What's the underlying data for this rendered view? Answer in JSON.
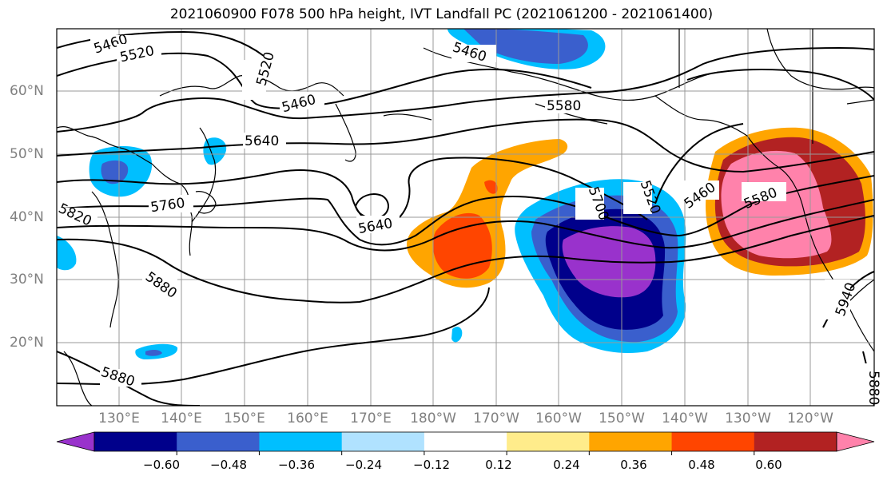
{
  "title": "2021060900 F078 500 hPa height, IVT Landfall PC (2021061200 - 2021061400)",
  "lat_labels": [
    "60°N",
    "50°N",
    "40°N",
    "30°N",
    "20°N"
  ],
  "lon_labels": [
    "130°E",
    "140°E",
    "150°E",
    "160°E",
    "170°E",
    "180°W",
    "170°W",
    "160°W",
    "150°W",
    "140°W",
    "130°W",
    "120°W"
  ],
  "contour_labels": [
    "5460",
    "5520",
    "5520",
    "5460",
    "5460",
    "5580",
    "5640",
    "5640",
    "5760",
    "5820",
    "5880",
    "5880",
    "5700",
    "5520",
    "5460",
    "5580",
    "5940",
    "5880"
  ],
  "colorbar": {
    "colors": [
      "#9932cc",
      "#00008b",
      "#3a5fcd",
      "#00bfff",
      "#b0e2ff",
      "#ffffff",
      "#ffec8b",
      "#ffa500",
      "#ff4500",
      "#b22222",
      "#ff82ab"
    ],
    "tick_labels": [
      "−0.60",
      "−0.48",
      "−0.36",
      "−0.24",
      "−0.12",
      "0.12",
      "0.24",
      "0.36",
      "0.48",
      "0.60"
    ]
  },
  "colors": {
    "grid": "#999999",
    "tick_label": "#808080",
    "contour": "#000000"
  }
}
